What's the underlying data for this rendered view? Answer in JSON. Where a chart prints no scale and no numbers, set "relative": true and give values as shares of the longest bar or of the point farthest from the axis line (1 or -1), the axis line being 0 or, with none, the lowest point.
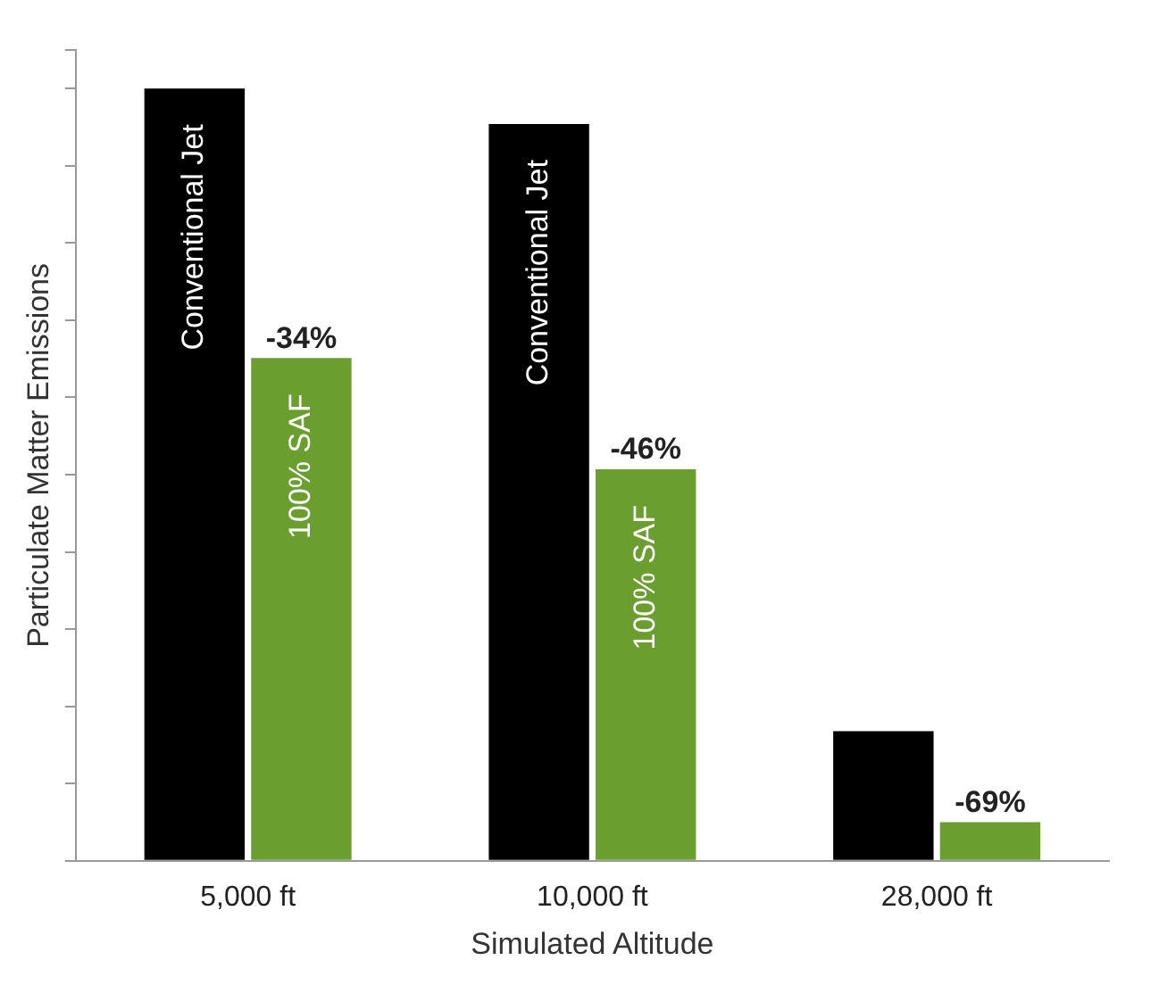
{
  "chart_data": {
    "type": "bar",
    "relative": true,
    "xlabel": "Simulated Altitude",
    "ylabel": "Particulate Matter Emissions",
    "categories": [
      "5,000 ft",
      "10,000 ft",
      "28,000 ft"
    ],
    "series": [
      {
        "name": "Conventional Jet",
        "color": "#000000",
        "values": [
          1,
          0.954,
          0.168
        ]
      },
      {
        "name": "100% SAF",
        "color": "#6a9e2f",
        "values": [
          0.651,
          0.507,
          0.05
        ]
      }
    ],
    "annotations": [
      {
        "text": "-34%",
        "x": "5,000 ft",
        "y": 0.651
      },
      {
        "text": "-46%",
        "x": "10,000 ft",
        "y": 0.507
      },
      {
        "text": "-69%",
        "x": "28,000 ft",
        "y": 0.05
      }
    ],
    "legend": false,
    "grid": false
  }
}
